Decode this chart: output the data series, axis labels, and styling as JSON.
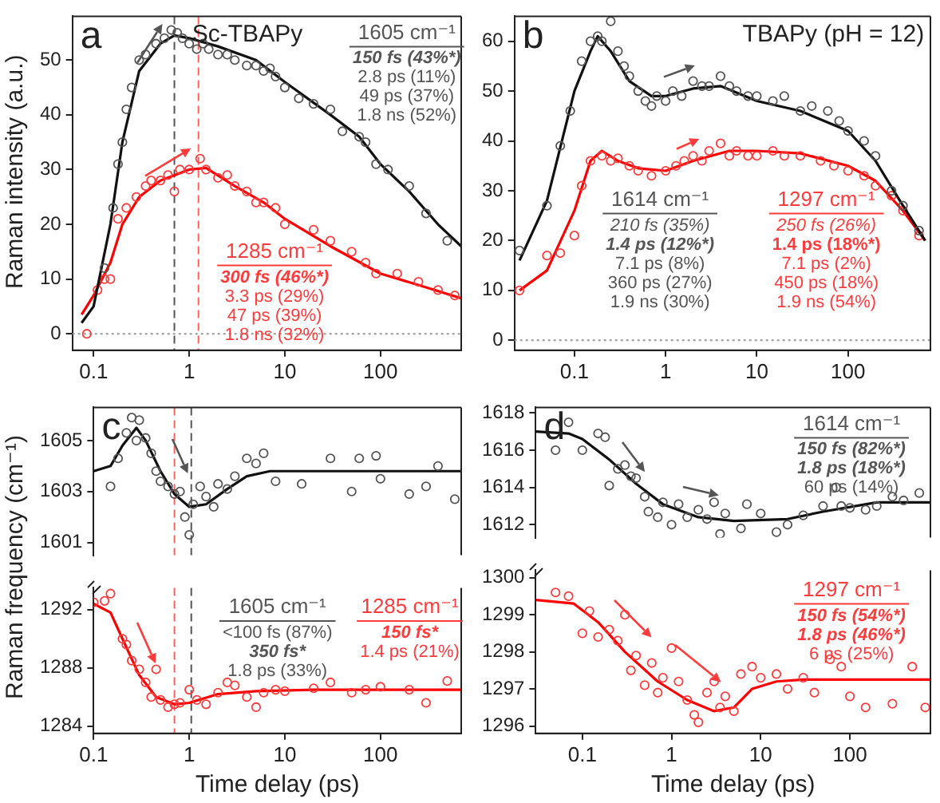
{
  "chart_data": [
    {
      "type": "scatter",
      "title": "a",
      "subtitle": "Sc-TBAPy",
      "ylabel": "Raman intensity (a.u.)",
      "log": "x",
      "marker": "circle",
      "xlim": [
        0.06,
        700
      ],
      "xticks": [
        0.1,
        1,
        10,
        100
      ],
      "ylim": [
        -3,
        58
      ],
      "yticks": [
        0,
        10,
        20,
        30,
        40,
        50
      ],
      "series": [
        {
          "type": "scatter",
          "name": "1605 cm⁻¹",
          "color": "#555555",
          "x": [
            0.13,
            0.16,
            0.18,
            0.2,
            0.22,
            0.25,
            0.3,
            0.35,
            0.45,
            0.55,
            0.65,
            0.75,
            0.85,
            1,
            1.2,
            1.4,
            1.6,
            2,
            2.5,
            3,
            4,
            5,
            6,
            7,
            8,
            10,
            14,
            20,
            30,
            40,
            60,
            70,
            90,
            120,
            200,
            300,
            500
          ],
          "values": [
            12,
            23,
            31,
            35,
            41,
            45,
            50,
            51,
            53,
            54,
            55.5,
            55,
            54,
            53,
            52,
            53,
            52,
            51,
            51,
            50,
            49,
            49,
            48,
            48.5,
            47,
            45,
            43,
            42,
            41,
            37,
            36,
            35,
            31,
            30,
            27,
            22,
            17
          ]
        },
        {
          "type": "line",
          "color": "#111111",
          "marker": "none",
          "x": [
            0.075,
            0.1,
            0.15,
            0.2,
            0.3,
            0.5,
            0.7,
            1,
            2,
            5,
            10,
            30,
            60,
            100,
            200,
            400,
            700
          ],
          "values": [
            2,
            5,
            20,
            35,
            48,
            53,
            54.5,
            54,
            52.5,
            50,
            46,
            40,
            36,
            31,
            26,
            20,
            16
          ]
        },
        {
          "type": "scatter",
          "name": "1285 cm⁻¹",
          "color": "#ff3b3b",
          "x": [
            0.085,
            0.11,
            0.13,
            0.15,
            0.18,
            0.22,
            0.28,
            0.35,
            0.4,
            0.5,
            0.6,
            0.7,
            0.8,
            1,
            1.3,
            1.5,
            2,
            2.5,
            3,
            4,
            5,
            6,
            8,
            10,
            20,
            30,
            50,
            70,
            90,
            150,
            250,
            400,
            600
          ],
          "values": [
            0,
            8,
            10,
            10,
            21,
            23,
            25,
            27,
            28,
            28,
            29,
            26,
            30,
            30,
            32,
            30,
            28.5,
            29,
            27,
            26,
            24,
            24,
            23,
            20,
            19,
            17,
            15,
            13,
            11,
            11,
            9.5,
            8,
            7
          ]
        },
        {
          "type": "line",
          "color": "#ff0000",
          "marker": "none",
          "x": [
            0.075,
            0.1,
            0.15,
            0.2,
            0.3,
            0.5,
            1,
            1.5,
            3,
            6,
            10,
            30,
            100,
            300,
            700
          ],
          "values": [
            3.5,
            7,
            13,
            20,
            25,
            28,
            30,
            30.3,
            27,
            24,
            21,
            16,
            11,
            8.5,
            6.5
          ]
        }
      ],
      "ref_lines": [
        {
          "axis": "y",
          "value": 0,
          "color": "#999999",
          "line_style": "dotted"
        },
        {
          "axis": "x",
          "value": 0.7,
          "color": "#555555",
          "line_style": "dashed"
        },
        {
          "axis": "x",
          "value": 1.25,
          "color": "#ff6060",
          "line_style": "dashed"
        }
      ],
      "annotations": [
        "150 fs (43%*)",
        "2.8 ps (11%)",
        "49 ps (37%)",
        "1.8 ns (52%)",
        "300 fs (46%*)",
        "3.3 ps (29%)",
        "47 ps (39%)",
        "1.8 ns (32%)"
      ]
    },
    {
      "type": "scatter",
      "title": "b",
      "subtitle": "TBAPy (pH = 12)",
      "log": "x",
      "marker": "circle",
      "xlim": [
        0.022,
        800
      ],
      "xticks": [
        0.1,
        1,
        10,
        100
      ],
      "ylim": [
        -2,
        65
      ],
      "yticks": [
        0,
        10,
        20,
        30,
        40,
        50,
        60
      ],
      "series": [
        {
          "type": "scatter",
          "name": "1614 cm⁻¹",
          "color": "#555555",
          "x": [
            0.025,
            0.05,
            0.07,
            0.09,
            0.12,
            0.15,
            0.18,
            0.2,
            0.25,
            0.3,
            0.35,
            0.4,
            0.5,
            0.6,
            0.7,
            0.8,
            1,
            1.2,
            1.5,
            2,
            2.5,
            3,
            4,
            5,
            6,
            8,
            10,
            15,
            20,
            30,
            40,
            60,
            80,
            100,
            150,
            200,
            300,
            400,
            600
          ],
          "values": [
            18,
            27,
            39,
            46,
            56,
            60,
            61,
            60,
            64,
            58,
            55,
            53,
            50,
            48,
            47,
            49,
            48,
            50,
            49,
            52,
            51,
            51,
            53,
            51,
            50,
            49,
            49,
            48,
            49,
            46,
            47,
            46,
            44,
            42,
            40,
            37,
            30,
            27,
            22
          ]
        },
        {
          "type": "line",
          "color": "#111111",
          "marker": "none",
          "x": [
            0.025,
            0.05,
            0.1,
            0.15,
            0.18,
            0.25,
            0.4,
            0.7,
            1,
            2,
            4,
            10,
            30,
            100,
            200,
            400,
            700
          ],
          "values": [
            16,
            28,
            50,
            58,
            61,
            58,
            52,
            49,
            49,
            50.5,
            51,
            48,
            46,
            42,
            36,
            27,
            20
          ]
        },
        {
          "type": "scatter",
          "name": "1297 cm⁻¹",
          "color": "#ff3b3b",
          "x": [
            0.025,
            0.05,
            0.07,
            0.1,
            0.12,
            0.15,
            0.2,
            0.25,
            0.3,
            0.4,
            0.5,
            0.7,
            1,
            1.3,
            1.6,
            2,
            2.5,
            3,
            4,
            5,
            6,
            8,
            10,
            15,
            20,
            30,
            50,
            70,
            100,
            150,
            200,
            300,
            400,
            600
          ],
          "values": [
            10,
            17,
            17.5,
            21,
            31,
            36,
            37,
            36,
            36.5,
            35,
            34,
            33,
            34,
            35,
            36,
            37,
            36,
            38,
            39.5,
            37,
            38,
            37,
            37,
            38,
            37,
            37,
            36,
            35,
            34,
            33,
            31,
            29,
            26,
            21
          ]
        },
        {
          "type": "line",
          "color": "#ff0000",
          "marker": "none",
          "x": [
            0.025,
            0.05,
            0.1,
            0.15,
            0.2,
            0.3,
            0.5,
            1,
            2,
            5,
            10,
            30,
            100,
            200,
            400,
            700
          ],
          "values": [
            10,
            14,
            26,
            36,
            38,
            36,
            34.5,
            34,
            36,
            38,
            38,
            37.5,
            35,
            32,
            26,
            20
          ]
        }
      ],
      "ref_lines": [
        {
          "axis": "y",
          "value": 0,
          "color": "#999999",
          "line_style": "dotted"
        }
      ],
      "annotations": [
        "210 fs (35%)",
        "1.4 ps (12%*)",
        "7.1 ps (8%)",
        "360 ps (27%)",
        "1.9 ns (30%)",
        "250 fs (26%)",
        "1.4 ps (18%*)",
        "7.1 ps (2%)",
        "450 ps (18%)",
        "1.9 ns (54%)"
      ]
    },
    {
      "type": "scatter",
      "title": "c",
      "log": "x",
      "marker": "circle",
      "tick_labels": "y",
      "xlim": [
        0.1,
        700
      ],
      "xticks": [
        0.1,
        1,
        10,
        100
      ],
      "ylim": [
        1600.5,
        1606.3
      ],
      "yticks": [
        1601,
        1603,
        1605
      ],
      "series": [
        {
          "type": "scatter",
          "name": "1605 cm⁻¹",
          "color": "#555555",
          "x": [
            0.15,
            0.18,
            0.22,
            0.25,
            0.28,
            0.3,
            0.35,
            0.4,
            0.45,
            0.5,
            0.6,
            0.7,
            0.8,
            0.9,
            1,
            1.1,
            1.3,
            1.5,
            1.8,
            2,
            2.5,
            3,
            4,
            5,
            6,
            8,
            15,
            30,
            50,
            60,
            90,
            100,
            200,
            300,
            400,
            600
          ],
          "values": [
            1603.2,
            1604.3,
            1605.3,
            1605.9,
            1605,
            1605.8,
            1605.1,
            1604.5,
            1603.8,
            1603.4,
            1603.2,
            1602.9,
            1603,
            1602,
            1601.3,
            1602.5,
            1603.2,
            1602.8,
            1602.4,
            1603.3,
            1603.1,
            1603.6,
            1604.3,
            1604.1,
            1604.5,
            1603.4,
            1603.3,
            1604.3,
            1603,
            1604.3,
            1604.4,
            1603.5,
            1602.9,
            1603.2,
            1604,
            1602.7
          ]
        },
        {
          "type": "line",
          "color": "#111111",
          "marker": "none",
          "x": [
            0.1,
            0.15,
            0.2,
            0.28,
            0.35,
            0.5,
            0.7,
            1,
            1.5,
            2.5,
            4,
            7,
            20,
            100,
            700
          ],
          "values": [
            1603.8,
            1604,
            1604.8,
            1605.5,
            1605,
            1603.8,
            1602.9,
            1602.4,
            1602.5,
            1603.1,
            1603.6,
            1603.8,
            1603.8,
            1603.8,
            1603.8
          ]
        }
      ],
      "ref_lines": [
        {
          "axis": "x",
          "value": 0.7,
          "color": "#ff6060",
          "line_style": "dashed"
        },
        {
          "axis": "x",
          "value": 1.05,
          "color": "#555555",
          "line_style": "dashed"
        }
      ]
    },
    {
      "type": "scatter",
      "xlabel": "Time delay (ps)",
      "ylabel": "Raman frequency (cm⁻¹)",
      "log": "x",
      "marker": "circle",
      "xlim": [
        0.1,
        700
      ],
      "xticks": [
        0.1,
        1,
        10,
        100
      ],
      "ylim": [
        1283.5,
        1293.5
      ],
      "yticks": [
        1284,
        1288,
        1292
      ],
      "series": [
        {
          "type": "scatter",
          "name": "1285 cm⁻¹",
          "color": "#ff3b3b",
          "x": [
            0.1,
            0.13,
            0.15,
            0.2,
            0.22,
            0.25,
            0.3,
            0.35,
            0.4,
            0.45,
            0.5,
            0.6,
            0.7,
            0.8,
            1,
            1.2,
            1.5,
            2,
            2.5,
            3,
            4,
            5,
            6,
            8,
            10,
            20,
            30,
            50,
            70,
            100,
            200,
            300,
            500
          ],
          "values": [
            1292.5,
            1292.6,
            1293.1,
            1290,
            1289.6,
            1288.5,
            1287.9,
            1287,
            1286,
            1287.9,
            1285.8,
            1285.3,
            1285.5,
            1285.6,
            1286.5,
            1285.8,
            1285.5,
            1286.3,
            1287,
            1286.8,
            1286,
            1285.3,
            1286.3,
            1286.5,
            1286.4,
            1286.6,
            1287,
            1286.3,
            1286.5,
            1286.7,
            1286.5,
            1285.6,
            1287.1
          ]
        },
        {
          "type": "line",
          "color": "#ff0000",
          "marker": "none",
          "x": [
            0.1,
            0.15,
            0.2,
            0.3,
            0.45,
            0.7,
            1,
            2,
            5,
            20,
            700
          ],
          "values": [
            1292.4,
            1291.8,
            1290,
            1287.5,
            1286,
            1285.5,
            1285.6,
            1286.2,
            1286.4,
            1286.5,
            1286.5
          ]
        }
      ],
      "ref_lines": [
        {
          "axis": "x",
          "value": 0.7,
          "color": "#ff6060",
          "line_style": "dashed"
        },
        {
          "axis": "x",
          "value": 1.05,
          "color": "#555555",
          "line_style": "dashed"
        }
      ],
      "annotations": [
        "<100 fs (87%)",
        "350 fs*",
        "1.8 ps (33%)",
        "150 fs*",
        "1.4 ps (21%)"
      ]
    },
    {
      "type": "scatter",
      "title": "d",
      "log": "x",
      "marker": "circle",
      "tick_labels": "y",
      "xlim": [
        0.03,
        800
      ],
      "xticks": [
        0.1,
        1,
        10,
        100
      ],
      "ylim": [
        1611.3,
        1618.3
      ],
      "yticks": [
        1612,
        1614,
        1616,
        1618
      ],
      "series": [
        {
          "type": "scatter",
          "name": "1614 cm⁻¹",
          "color": "#555555",
          "x": [
            0.05,
            0.07,
            0.1,
            0.15,
            0.18,
            0.2,
            0.25,
            0.3,
            0.35,
            0.4,
            0.5,
            0.55,
            0.7,
            0.8,
            1,
            1.2,
            1.5,
            2,
            2.5,
            3,
            3.5,
            4,
            6,
            7,
            10,
            15,
            20,
            30,
            50,
            70,
            80,
            100,
            150,
            200,
            300,
            400,
            600
          ],
          "values": [
            1616,
            1617.5,
            1616,
            1616.9,
            1616.7,
            1614.1,
            1615,
            1615.2,
            1614.6,
            1614.5,
            1613.5,
            1612.7,
            1612.4,
            1613.2,
            1612,
            1613.1,
            1612.4,
            1612.8,
            1612.3,
            1613.2,
            1611.5,
            1612.6,
            1611.8,
            1613.1,
            1612.6,
            1611.6,
            1612,
            1612.5,
            1613,
            1614,
            1613,
            1612.9,
            1612.8,
            1613,
            1613.5,
            1613.3,
            1613.7
          ]
        },
        {
          "type": "line",
          "color": "#111111",
          "marker": "none",
          "x": [
            0.03,
            0.07,
            0.1,
            0.2,
            0.4,
            0.8,
            2,
            5,
            20,
            50,
            200,
            800
          ],
          "values": [
            1617,
            1616.9,
            1616.6,
            1615.5,
            1614.2,
            1613.1,
            1612.4,
            1612.2,
            1612.3,
            1612.7,
            1613.2,
            1613.2
          ]
        }
      ],
      "annotations": [
        "150 fs (82%*)",
        "1.8 ps (18%*)",
        "60 ps (14%)"
      ]
    },
    {
      "type": "scatter",
      "xlabel": "Time delay (ps)",
      "log": "x",
      "marker": "circle",
      "xlim": [
        0.03,
        800
      ],
      "xticks": [
        0.1,
        1,
        10,
        100
      ],
      "ylim": [
        1295.8,
        1300.2
      ],
      "yticks": [
        1296,
        1297,
        1298,
        1299,
        1300
      ],
      "series": [
        {
          "type": "scatter",
          "name": "1297 cm⁻¹",
          "color": "#ff3b3b",
          "x": [
            0.05,
            0.07,
            0.1,
            0.12,
            0.15,
            0.2,
            0.25,
            0.3,
            0.35,
            0.4,
            0.5,
            0.6,
            0.7,
            0.8,
            1,
            1.2,
            1.5,
            1.8,
            2,
            2.5,
            3,
            3.5,
            4,
            5,
            6,
            8,
            10,
            15,
            20,
            30,
            40,
            60,
            80,
            100,
            150,
            300,
            500,
            700
          ],
          "values": [
            1299.6,
            1299.5,
            1298.5,
            1299.1,
            1298.4,
            1298.6,
            1298.3,
            1299,
            1297.5,
            1297.9,
            1297.1,
            1297.7,
            1296.9,
            1297.3,
            1298.1,
            1297.2,
            1296.7,
            1296.3,
            1296.1,
            1296.9,
            1297.2,
            1296.5,
            1296.8,
            1296.4,
            1297.4,
            1297.6,
            1297.3,
            1297.4,
            1297,
            1297.3,
            1296.9,
            1297.8,
            1297.6,
            1296.8,
            1296.5,
            1296.6,
            1297.6,
            1296.5
          ]
        },
        {
          "type": "line",
          "color": "#ff0000",
          "marker": "none",
          "x": [
            0.03,
            0.08,
            0.15,
            0.3,
            0.7,
            1.5,
            3,
            5,
            8,
            15,
            30,
            800
          ],
          "values": [
            1299.4,
            1299.3,
            1298.8,
            1298,
            1297.2,
            1296.7,
            1296.4,
            1296.5,
            1297,
            1297.2,
            1297.25,
            1297.25
          ]
        }
      ],
      "annotations": [
        "150 fs (54%*)",
        "1.8 ps (46%*)",
        "6 ps (25%)"
      ]
    }
  ]
}
